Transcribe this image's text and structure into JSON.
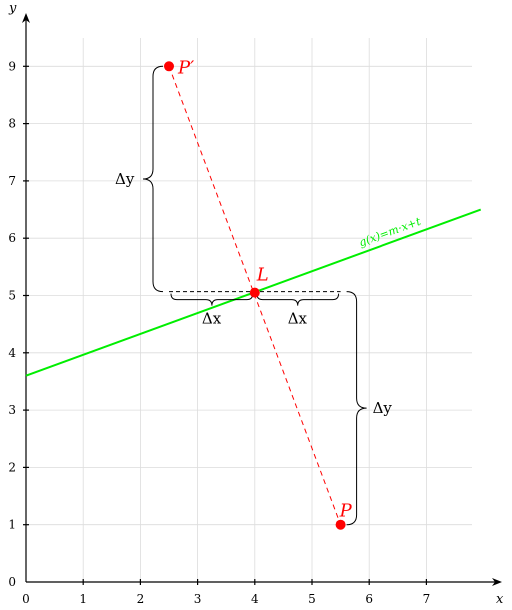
{
  "axes": {
    "x_label": "x",
    "y_label": "y",
    "x_ticks": [
      "0",
      "1",
      "2",
      "3",
      "4",
      "5",
      "6",
      "7"
    ],
    "y_ticks": [
      "0",
      "1",
      "2",
      "3",
      "4",
      "5",
      "6",
      "7",
      "8",
      "9"
    ]
  },
  "points": {
    "P_prime": {
      "label": "P′",
      "x": 2.5,
      "y": 9
    },
    "L": {
      "label": "L",
      "x": 4,
      "y": 5.05
    },
    "P": {
      "label": "P",
      "x": 5.5,
      "y": 1
    }
  },
  "line_g": {
    "label": "g(x)=m·x+t",
    "x_start": 0,
    "y_start": 3.6,
    "x_end": 7.95,
    "y_end": 6.5
  },
  "braces": {
    "delta_y_upper": "Δy",
    "delta_y_lower": "Δy",
    "delta_x_left": "Δx",
    "delta_x_right": "Δx"
  },
  "colors": {
    "points": "#ff0000",
    "line_g": "#00ee00",
    "reflection_line": "#ff0000",
    "grid": "#dcdcdc",
    "axis": "#000000"
  }
}
